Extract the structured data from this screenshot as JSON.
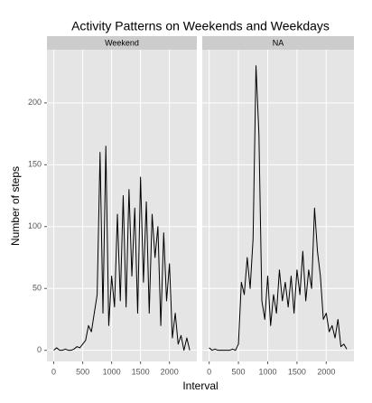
{
  "chart_data": {
    "type": "line",
    "title": "Activity Patterns on Weekends and Weekdays",
    "xlabel": "Interval",
    "ylabel": "Number of steps",
    "x": [
      0,
      50,
      100,
      150,
      200,
      250,
      300,
      350,
      400,
      450,
      500,
      550,
      600,
      650,
      700,
      750,
      800,
      850,
      900,
      950,
      1000,
      1050,
      1100,
      1150,
      1200,
      1250,
      1300,
      1350,
      1400,
      1450,
      1500,
      1550,
      1600,
      1650,
      1700,
      1750,
      1800,
      1850,
      1900,
      1950,
      2000,
      2050,
      2100,
      2150,
      2200,
      2250,
      2300,
      2350
    ],
    "series": [
      {
        "name": "Weekend",
        "color": "#000000",
        "values": [
          0,
          2,
          0,
          0,
          1,
          0,
          0,
          1,
          3,
          2,
          5,
          8,
          20,
          15,
          30,
          45,
          160,
          30,
          165,
          20,
          60,
          35,
          110,
          40,
          125,
          35,
          130,
          60,
          115,
          30,
          140,
          55,
          120,
          30,
          110,
          75,
          100,
          20,
          95,
          40,
          70,
          10,
          30,
          5,
          12,
          0,
          10,
          0
        ]
      },
      {
        "name": "NA",
        "color": "#000000",
        "values": [
          2,
          0,
          1,
          0,
          0,
          0,
          0,
          0,
          1,
          0,
          5,
          55,
          45,
          75,
          50,
          90,
          230,
          175,
          40,
          25,
          60,
          20,
          45,
          30,
          65,
          40,
          55,
          35,
          60,
          30,
          65,
          45,
          80,
          40,
          65,
          50,
          115,
          80,
          60,
          25,
          30,
          15,
          20,
          10,
          25,
          3,
          5,
          1
        ]
      }
    ],
    "xlim": [
      -118,
      2473
    ],
    "xticks": [
      0,
      500,
      1000,
      1500,
      2000
    ],
    "ylim": [
      -9,
      243
    ],
    "yticks": [
      0,
      50,
      100,
      150,
      200
    ],
    "grid": true
  }
}
